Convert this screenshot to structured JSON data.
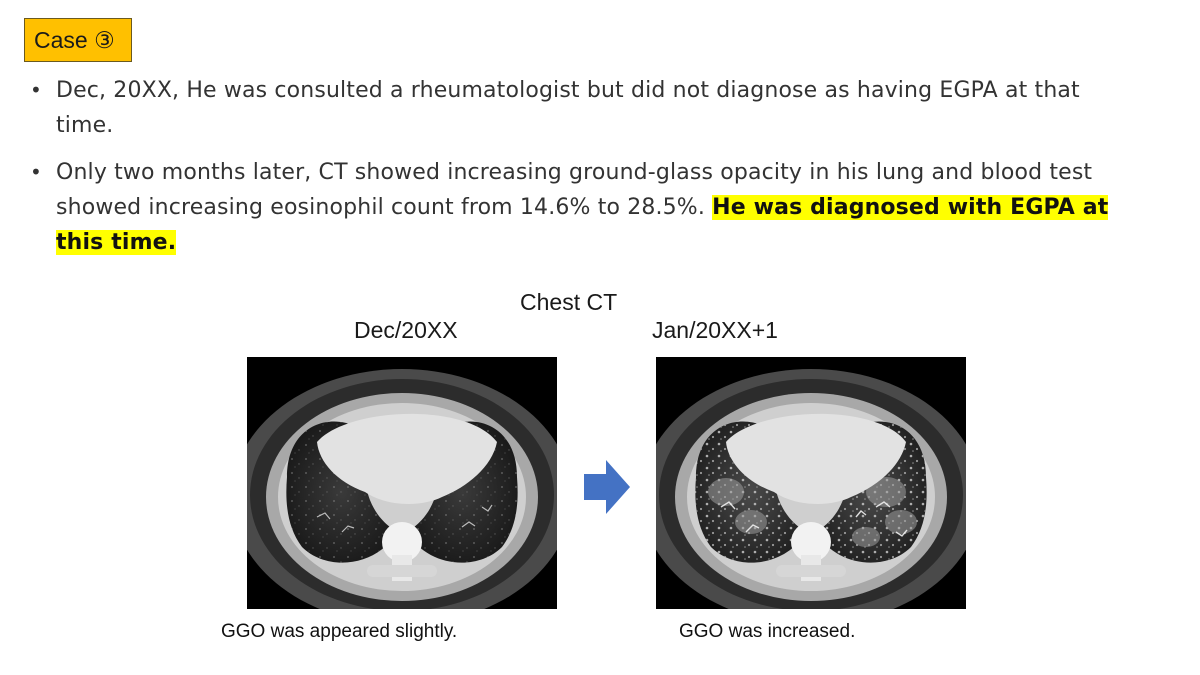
{
  "case_label": "Case ③",
  "bullets": [
    {
      "text": "Dec, 20XX, He was consulted a rheumatologist but did not diagnose as having EGPA at that time."
    },
    {
      "text": "Only two months later, CT showed increasing ground-glass opacity in his lung and blood test showed increasing eosinophil count from 14.6% to 28.5%. ",
      "highlight": "He was diagnosed with EGPA at this time."
    }
  ],
  "bullet_symbol": "•",
  "ct": {
    "title": "Chest CT",
    "left_date": "Dec/20XX",
    "right_date": "Jan/20XX+1",
    "left_caption": "GGO was appeared slightly.",
    "right_caption": "GGO was increased."
  },
  "colors": {
    "case_label_bg": "#ffc000",
    "highlight": "#ffff00",
    "arrow": "#4472c4"
  },
  "icons": {
    "arrow": "right-arrow-icon"
  }
}
